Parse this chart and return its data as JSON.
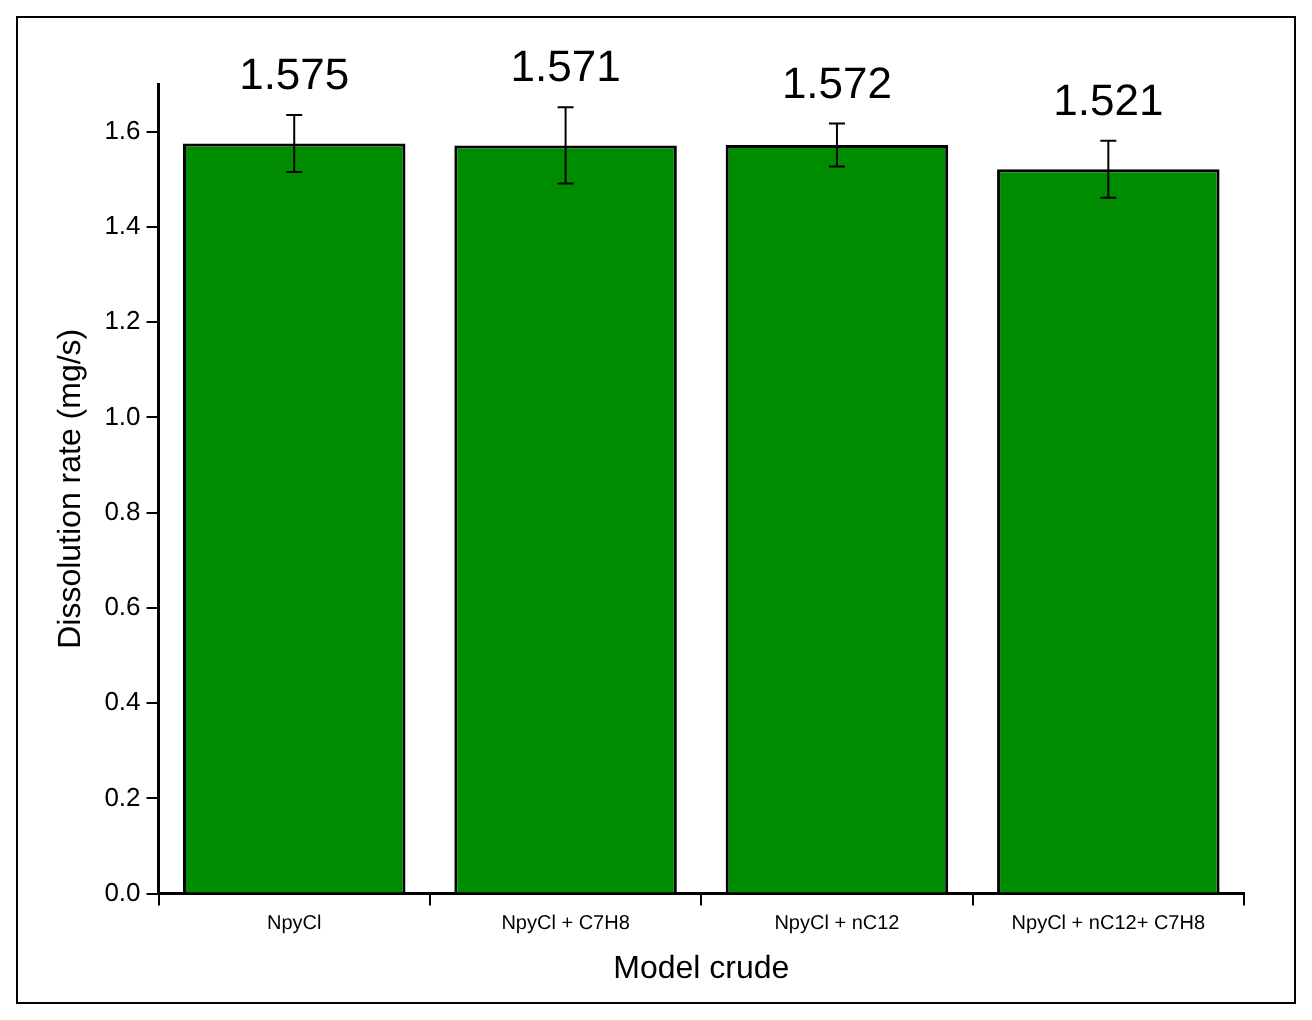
{
  "chart_data": {
    "type": "bar",
    "xlabel": "Model crude",
    "ylabel": "Dissolution rate (mg/s)",
    "categories": [
      "NpyCl",
      "NpyCl + C7H8",
      "NpyCl + nC12",
      "NpyCl + nC12+ C7H8"
    ],
    "values": [
      1.575,
      1.571,
      1.572,
      1.521
    ],
    "errors": [
      0.06,
      0.08,
      0.045,
      0.06
    ],
    "color": "#008c00",
    "data_labels": true,
    "grid": false,
    "legend": false,
    "ylim": [
      0,
      1.7
    ],
    "yticks": [
      {
        "value": 0,
        "label": "0.0"
      },
      0.2,
      0.4,
      0.6,
      0.8,
      {
        "value": 1,
        "label": "1.0"
      },
      1.2,
      1.4,
      1.6
    ]
  }
}
